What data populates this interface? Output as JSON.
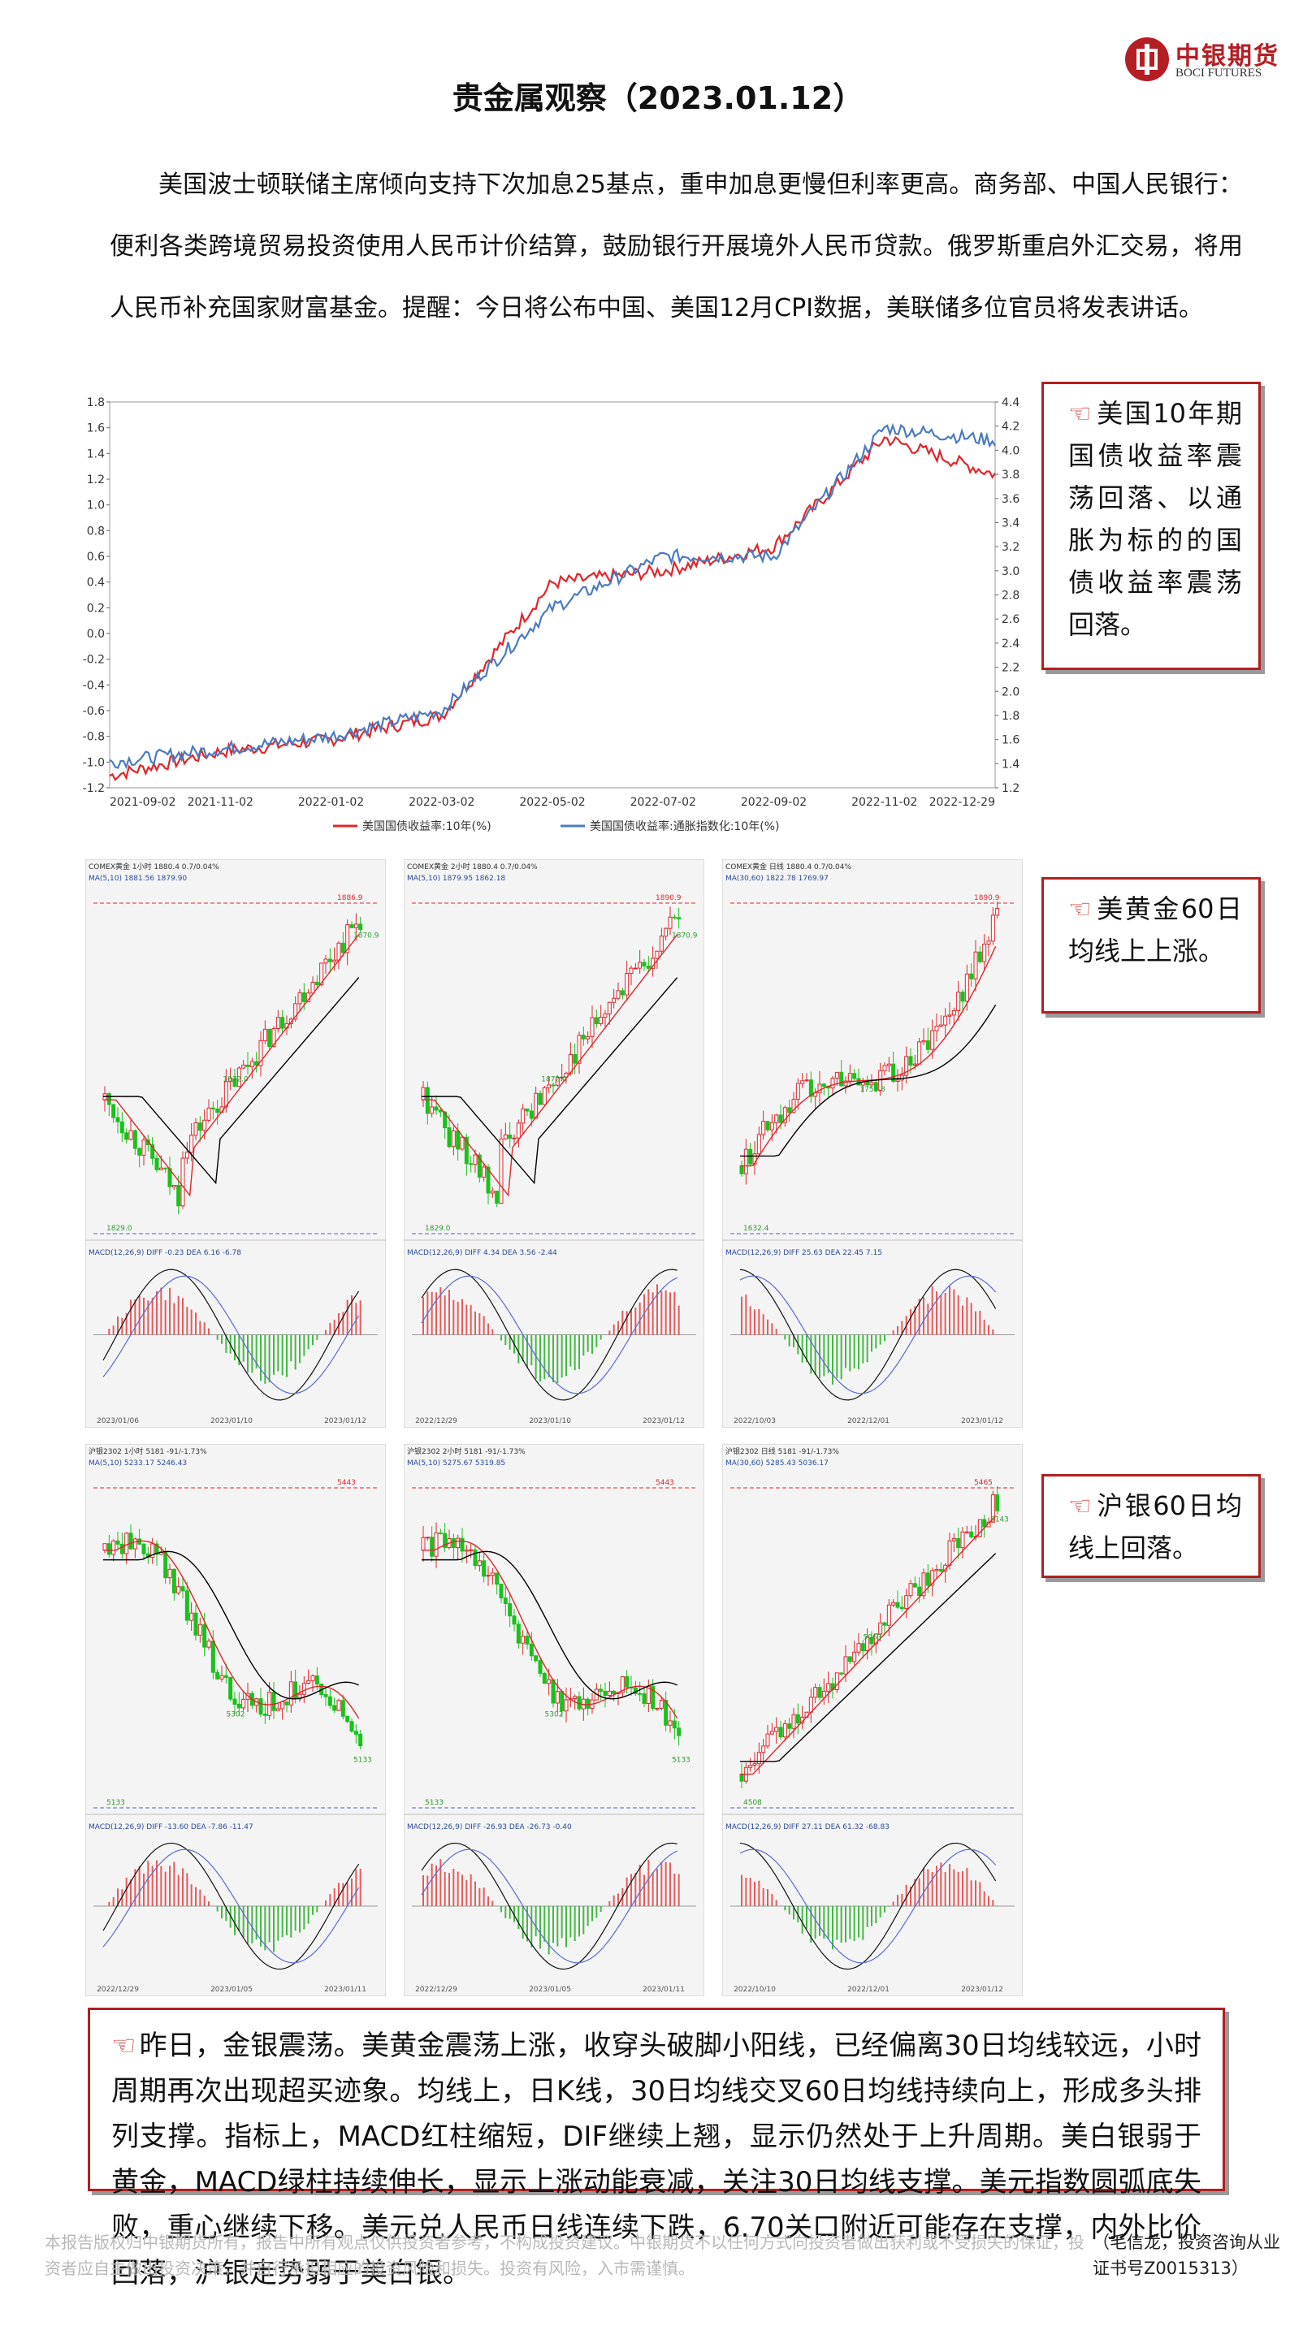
{
  "header": {
    "logo_cn": "中银期货",
    "logo_en": "BOCI FUTURES",
    "title": "贵金属观察（2023.01.12）"
  },
  "intro": "美国波士顿联储主席倾向支持下次加息25基点，重申加息更慢但利率更高。商务部、中国人民银行：便利各类跨境贸易投资使用人民币计价结算，鼓励银行开展境外人民币贷款。俄罗斯重启外汇交易，将用人民币补充国家财富基金。提醒：今日将公布中国、美国12月CPI数据，美联储多位官员将发表讲话。",
  "chart_data": [
    {
      "type": "line",
      "x": [
        "2021-09-02",
        "2021-11-02",
        "2022-01-02",
        "2022-03-02",
        "2022-05-02",
        "2022-07-02",
        "2022-09-02",
        "2022-11-02",
        "2022-12-29"
      ],
      "series": [
        {
          "name": "美国国债收益率:10年(%)",
          "axis": "right",
          "color": "#e0262b",
          "values": [
            1.3,
            1.5,
            1.6,
            1.8,
            2.9,
            3.0,
            3.2,
            4.1,
            3.8
          ]
        },
        {
          "name": "美国国债收益率:通胀指数化:10年(%)",
          "axis": "left",
          "color": "#4a7bc0",
          "values": [
            -1.0,
            -0.9,
            -0.8,
            -0.6,
            0.2,
            0.6,
            0.6,
            1.6,
            1.5
          ]
        }
      ],
      "ylim_left": [
        -1.2,
        1.8
      ],
      "ylim_right": [
        1.2,
        4.4
      ],
      "yticks_left": [
        "1.8",
        "1.6",
        "1.4",
        "1.2",
        "1.0",
        "0.8",
        "0.6",
        "0.4",
        "0.2",
        "0.0",
        "-0.2",
        "-0.4",
        "-0.6",
        "-0.8",
        "-1.0",
        "-1.2"
      ],
      "yticks_right": [
        "4.4",
        "4.2",
        "4.0",
        "3.8",
        "3.6",
        "3.4",
        "3.2",
        "3.0",
        "2.8",
        "2.6",
        "2.4",
        "2.2",
        "2.0",
        "1.8",
        "1.6",
        "1.4",
        "1.2"
      ],
      "xticks": [
        "2021-09-02",
        "2021-11-02",
        "2022-01-02",
        "2022-03-02",
        "2022-05-02",
        "2022-07-02",
        "2022-09-02",
        "2022-11-02",
        "2022-12-29"
      ],
      "legend_placement": "bottom"
    }
  ],
  "gold_panels": [
    {
      "header": "COMEX黄金 1小时 1880.4 0.7/0.04%",
      "ma": "MA(5,10) 1881.56 1879.90",
      "hi": "1886.9",
      "lo": "1829.0",
      "mid": "1872.0",
      "last": "1870.9",
      "macd": "MACD(12,26,9) DIFF -0.23 DEA 6.16 -6.78",
      "dates": [
        "2023/01/06",
        "2023/01/10",
        "2023/01/12"
      ]
    },
    {
      "header": "COMEX黄金 2小时 1880.4 0.7/0.04%",
      "ma": "MA(5,10) 1879.95 1862.18",
      "hi": "1890.9",
      "lo": "1829.0",
      "mid": "1872.0",
      "last": "1870.9",
      "macd": "MACD(12,26,9) DIFF 4.34 DEA 3.56 -2.44",
      "dates": [
        "2022/12/29",
        "2023/01/10",
        "2023/01/12"
      ]
    },
    {
      "header": "COMEX黄金 日线 1880.4 0.7/0.04%",
      "ma": "MA(30,60) 1822.78 1769.97",
      "hi": "1890.9",
      "lo": "1632.4",
      "mid": "1753.8",
      "last": "",
      "macd": "MACD(12,26,9) DIFF 25.63 DEA 22.45 7.15",
      "dates": [
        "2022/10/03",
        "2022/12/01",
        "2023/01/12"
      ]
    }
  ],
  "silver_panels": [
    {
      "header": "沪银2302 1小时 5181 -91/-1.73%",
      "ma": "MA(5,10) 5233.17 5246.43",
      "hi": "5443",
      "lo": "5133",
      "mid": "5302",
      "last": "5133",
      "macd": "MACD(12,26,9) DIFF -13.60 DEA -7.86 -11.47",
      "dates": [
        "2022/12/29",
        "2023/01/05",
        "2023/01/11"
      ]
    },
    {
      "header": "沪银2302 2小时 5181 -91/-1.73%",
      "ma": "MA(5,10) 5275.67 5319.85",
      "hi": "5443",
      "lo": "5133",
      "mid": "5302",
      "last": "5133",
      "macd": "MACD(12,26,9) DIFF -26.93 DEA -26.73 -0.40",
      "dates": [
        "2022/12/29",
        "2023/01/05",
        "2023/01/11"
      ]
    },
    {
      "header": "沪银2302 日线 5181 -91/-1.73%",
      "ma": "MA(30,60) 5285.43 5036.17",
      "hi": "5465",
      "lo": "4508",
      "mid": "5063",
      "last": "5143",
      "macd": "MACD(12,26,9) DIFF 27.11 DEA 61.32 -68.83",
      "dates": [
        "2022/10/10",
        "2022/12/01",
        "2023/01/12"
      ]
    }
  ],
  "callouts": {
    "bond": "美国10年期国债收益率震荡回落、以通胀为标的的国债收益率震荡回落。",
    "gold": "美黄金60日均线上上涨。",
    "silver": "沪银60日均线上回落。"
  },
  "hand_glyph": "☜",
  "summary": "昨日，金银震荡。美黄金震荡上涨，收穿头破脚小阳线，已经偏离30日均线较远，小时周期再次出现超买迹象。均线上，日K线，30日均线交叉60日均线持续向上，形成多头排列支撑。指标上，MACD红柱缩短，DIF继续上翘，显示仍然处于上升周期。美白银弱于黄金，MACD绿柱持续伸长，显示上涨动能衰减，关注30日均线支撑。美元指数圆弧底失败，重心继续下移。美元兑人民币日线连续下跌，6.70关口附近可能存在支撑，内外比价回落，沪银走势弱于美白银。",
  "footer": {
    "disclaimer": "本报告版权归中银期货所有，报告中所有观点仅供投资者参考，不构成投资建议。中银期货不以任何方式向投资者做出获利或不受损失的保证，投资者应自主做出投资决策，并自行承担相应的投资风险和损失。投资有风险，入市需谨慎。",
    "analyst": "（毛信龙，投资咨询从业证书号Z0015313）"
  },
  "colors": {
    "accent": "#b21f1f",
    "up": "#e0262b",
    "down": "#18c21b",
    "blue": "#4a7bc0"
  }
}
